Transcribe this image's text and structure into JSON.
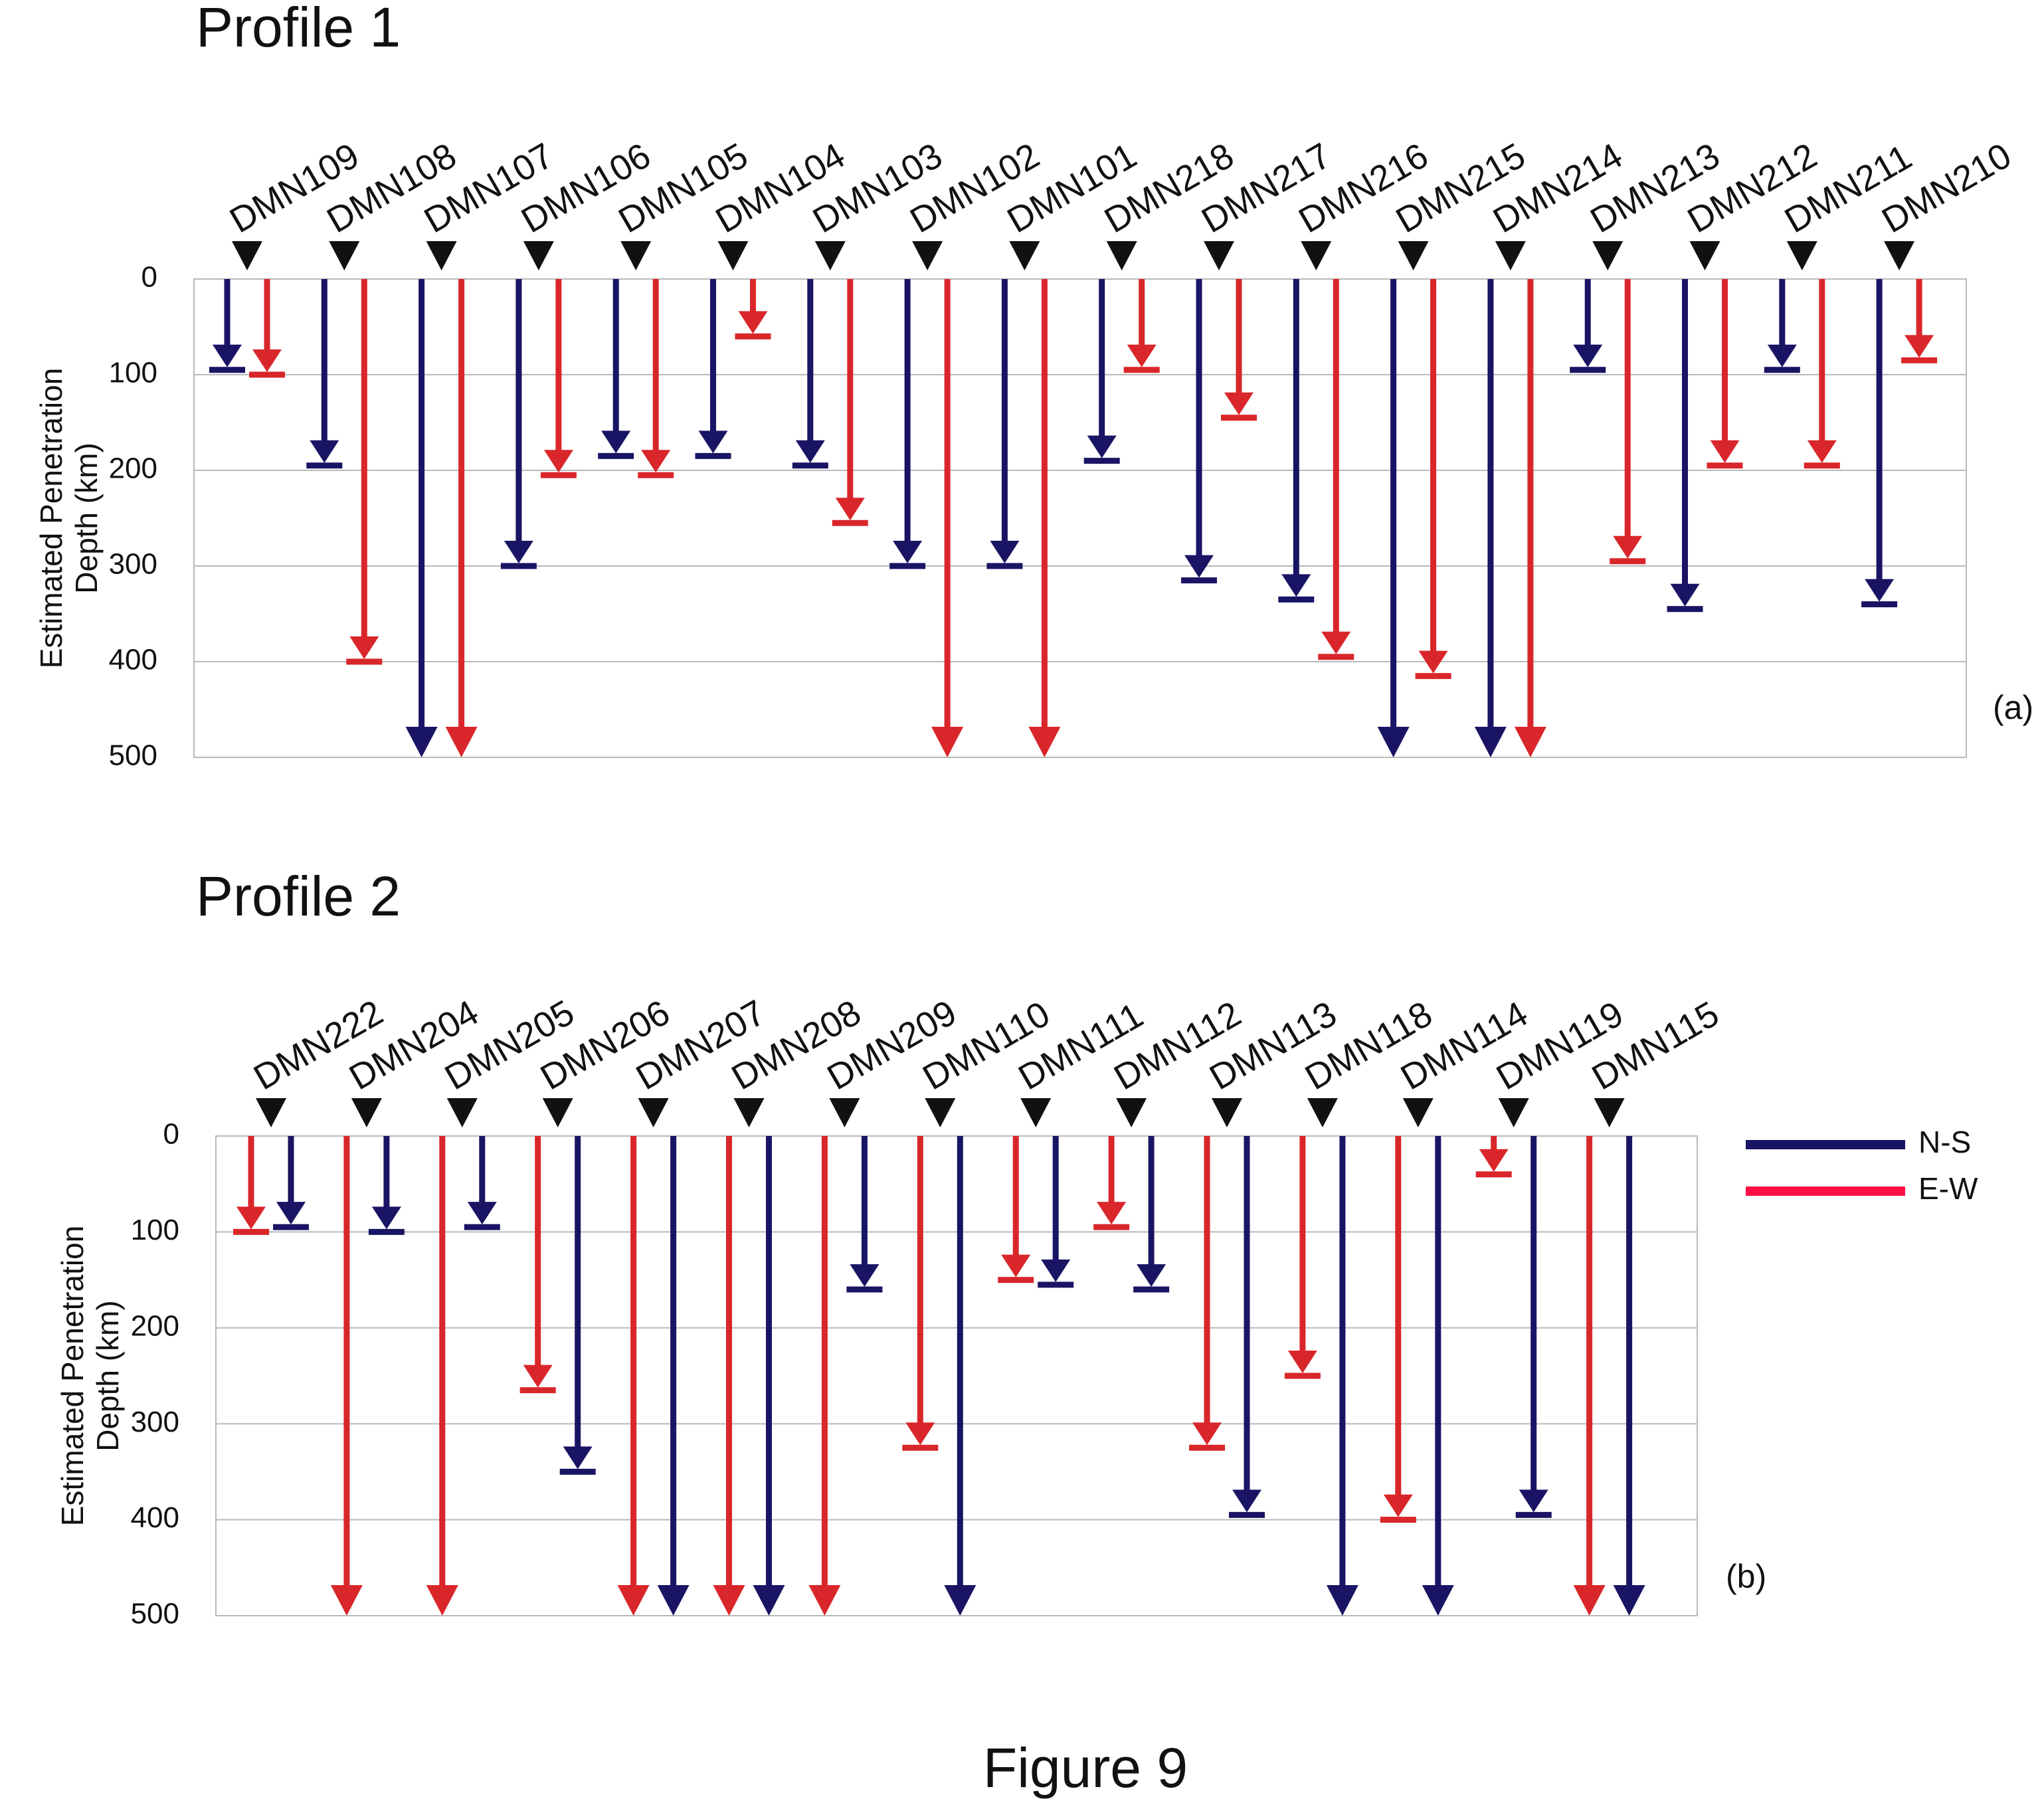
{
  "figure": {
    "caption": "Figure 9"
  },
  "legend": {
    "items": [
      {
        "label": "N-S",
        "color": "#1a1464"
      },
      {
        "label": "E-W",
        "color": "#ff0f46"
      }
    ]
  },
  "colors": {
    "ns": "#1a1464",
    "ew": "#d9262a",
    "station_marker": "#111111",
    "grid": "#b9b9b9"
  },
  "chart_data": [
    {
      "type": "bar",
      "title": "Profile 1",
      "panel_label": "(a)",
      "ylabel": "Estimated Penetration\nDepth (km)",
      "ylim": [
        0,
        500
      ],
      "y_inverted": true,
      "yticks": [
        0,
        100,
        200,
        300,
        400,
        500
      ],
      "grid": true,
      "note": "values at 500 are drawn as open arrows (penetration beyond 500 km)",
      "categories": [
        "DMN109",
        "DMN108",
        "DMN107",
        "DMN106",
        "DMN105",
        "DMN104",
        "DMN103",
        "DMN102",
        "DMN101",
        "DMN218",
        "DMN217",
        "DMN216",
        "DMN215",
        "DMN214",
        "DMN213",
        "DMN212",
        "DMN211",
        "DMN210"
      ],
      "series": [
        {
          "name": "N-S",
          "values": [
            95,
            195,
            500,
            300,
            185,
            185,
            195,
            300,
            300,
            190,
            315,
            335,
            500,
            500,
            95,
            345,
            95,
            340
          ]
        },
        {
          "name": "E-W",
          "values": [
            100,
            400,
            500,
            205,
            205,
            60,
            255,
            500,
            500,
            95,
            145,
            395,
            415,
            500,
            295,
            195,
            195,
            85
          ]
        }
      ],
      "series_order": [
        "N-S",
        "E-W"
      ]
    },
    {
      "type": "bar",
      "title": "Profile 2",
      "panel_label": "(b)",
      "ylabel": "Estimated Penetration\nDepth (km)",
      "ylim": [
        0,
        500
      ],
      "y_inverted": true,
      "yticks": [
        0,
        100,
        200,
        300,
        400,
        500
      ],
      "grid": true,
      "note": "values at 500 are drawn as open arrows (penetration beyond 500 km)",
      "categories": [
        "DMN222",
        "DMN204",
        "DMN205",
        "DMN206",
        "DMN207",
        "DMN208",
        "DMN209",
        "DMN110",
        "DMN111",
        "DMN112",
        "DMN113",
        "DMN118",
        "DMN114",
        "DMN119",
        "DMN115"
      ],
      "series": [
        {
          "name": "N-S",
          "values": [
            95,
            100,
            95,
            350,
            500,
            500,
            160,
            500,
            155,
            160,
            395,
            500,
            500,
            395,
            500
          ]
        },
        {
          "name": "E-W",
          "values": [
            100,
            500,
            500,
            265,
            500,
            500,
            500,
            325,
            150,
            95,
            325,
            250,
            400,
            40,
            500
          ]
        }
      ],
      "series_order": [
        "E-W",
        "N-S"
      ]
    }
  ]
}
